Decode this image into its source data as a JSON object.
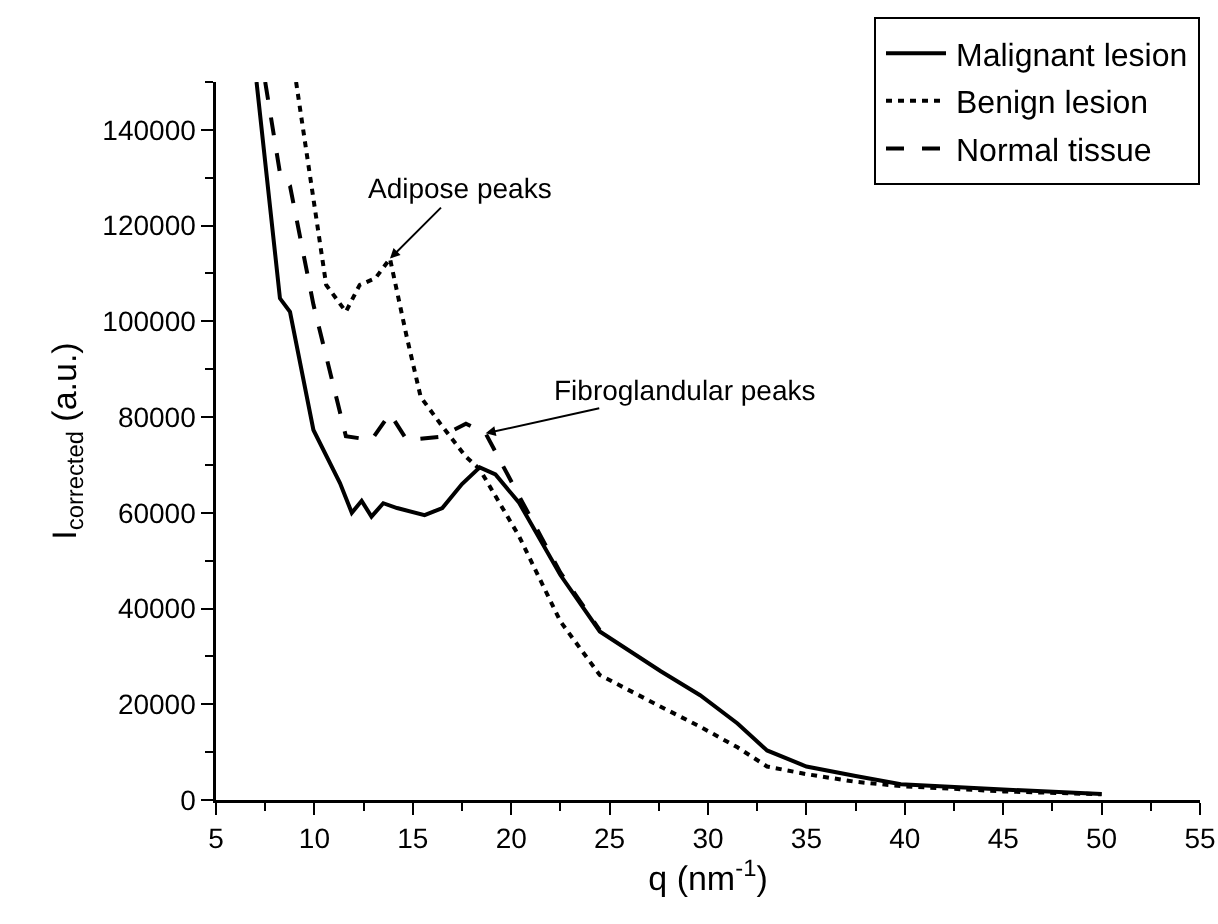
{
  "chart_data": {
    "type": "line",
    "xlabel": "q (nm$^{-1}$)",
    "ylabel": "I$_{corrected}$ (a.u.)",
    "xlim": [
      5,
      55
    ],
    "xticks": [
      5,
      10,
      15,
      20,
      25,
      30,
      35,
      40,
      45,
      50,
      55
    ],
    "ylim": [
      0,
      150000
    ],
    "yticks": [
      0,
      20000,
      40000,
      60000,
      80000,
      100000,
      120000,
      140000
    ],
    "grid": false,
    "legend": "top right",
    "marker": "none",
    "series": [
      {
        "name": "Malignant lesion",
        "color": "#000000",
        "line_style": "solid",
        "x": [
          7.06,
          8.25,
          8.76,
          9.95,
          11.3,
          11.9,
          12.4,
          12.9,
          13.5,
          14.2,
          15.6,
          16.5,
          17.5,
          18.4,
          19.2,
          20.4,
          22.5,
          24.5,
          27.6,
          29.6,
          31.5,
          33,
          35,
          37.5,
          39.8,
          45,
          50
        ],
        "values": [
          150000,
          104800,
          102000,
          77300,
          66200,
          60000,
          62500,
          59200,
          62000,
          61000,
          59500,
          61000,
          66000,
          69500,
          68000,
          62100,
          47000,
          35200,
          26900,
          21900,
          16000,
          10350,
          7000,
          5000,
          3300,
          2200,
          1240
        ]
      },
      {
        "name": "Benign lesion",
        "color": "#000000",
        "line_style": "dotted",
        "x": [
          9.07,
          10.6,
          11.6,
          12.3,
          13.1,
          13.84,
          14.7,
          15.4,
          16.4,
          17.7,
          18.4,
          20.4,
          22.5,
          24.5,
          27.6,
          29.6,
          31.5,
          33,
          35,
          37.5,
          39.8,
          45,
          50
        ],
        "values": [
          150000,
          107600,
          102000,
          107600,
          109000,
          113100,
          96600,
          84200,
          78600,
          71700,
          69100,
          55100,
          37300,
          26100,
          19500,
          15300,
          11000,
          7000,
          5400,
          3800,
          2900,
          1800,
          1200
        ]
      },
      {
        "name": "Normal tissue",
        "color": "#000000",
        "line_style": "dashed",
        "x": [
          7.5,
          8.25,
          8.76,
          9.95,
          11.6,
          12.9,
          13.84,
          14.7,
          16.4,
          17.7,
          18.7,
          20.4,
          22.5,
          24.5
        ],
        "values": [
          150000,
          131000,
          128300,
          103500,
          76000,
          75200,
          80700,
          75200,
          75900,
          78600,
          76600,
          63500,
          47500,
          35500
        ]
      }
    ],
    "annotations": [
      {
        "text": "Adipose peaks",
        "x": 13.84,
        "y": 113100
      },
      {
        "text": "Fibroglandular peaks",
        "x": 18.7,
        "y": 76600
      }
    ]
  }
}
